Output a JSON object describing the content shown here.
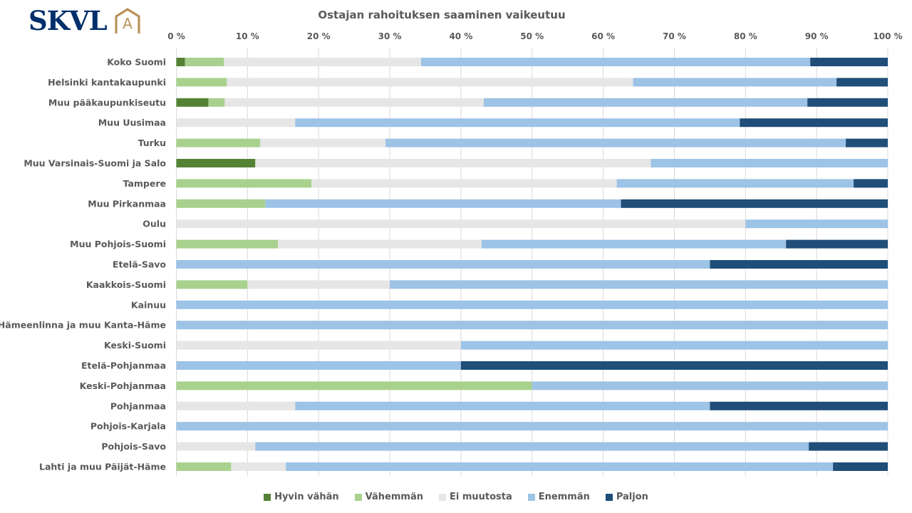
{
  "logo": {
    "text": "SKVL",
    "mark": "A"
  },
  "colors": {
    "hyvin_vahan": "#548235",
    "vahemman": "#A9D18E",
    "ei_muutosta": "#E7E6E6",
    "enemman": "#9DC3E6",
    "paljon": "#1F4E79",
    "gridline": "#D9D9D9",
    "logo_navy": "#002F6C",
    "logo_gold": "#B8925A"
  },
  "chart_data": {
    "type": "bar",
    "orientation": "horizontal",
    "stacked": "100%",
    "title": "Ostajan rahoituksen saaminen vaikeutuu",
    "xlabel": "",
    "ylabel": "",
    "xlim": [
      0,
      100
    ],
    "x_ticks": [
      "0 %",
      "10 %",
      "20 %",
      "30 %",
      "40 %",
      "50 %",
      "60 %",
      "70 %",
      "80 %",
      "90 %",
      "100 %"
    ],
    "grid": true,
    "legend_position": "bottom",
    "categories": [
      "Koko Suomi",
      "Helsinki kantakaupunki",
      "Muu pääkaupunkiseutu",
      "Muu Uusimaa",
      "Turku",
      "Muu Varsinais-Suomi ja Salo",
      "Tampere",
      "Muu Pirkanmaa",
      "Oulu",
      "Muu Pohjois-Suomi",
      "Etelä-Savo",
      "Kaakkois-Suomi",
      "Kainuu",
      "Hämeenlinna ja muu Kanta-Häme",
      "Keski-Suomi",
      "Etelä-Pohjanmaa",
      "Keski-Pohjanmaa",
      "Pohjanmaa",
      "Pohjois-Karjala",
      "Pohjois-Savo",
      "Lahti ja muu Päijät-Häme"
    ],
    "series": [
      {
        "name": "Hyvin vähän",
        "color_key": "hyvin_vahan",
        "values": [
          1.2,
          0,
          4.5,
          0,
          0,
          11.1,
          0,
          0,
          0,
          0,
          0,
          0,
          0,
          0,
          0,
          0,
          0,
          0,
          0,
          0,
          0
        ]
      },
      {
        "name": "Vähemmän",
        "color_key": "vahemman",
        "values": [
          5.5,
          7.1,
          2.3,
          0,
          11.8,
          0,
          19.0,
          12.5,
          0,
          14.3,
          0,
          10.0,
          0,
          0,
          0,
          0,
          50.0,
          0,
          0,
          0,
          7.7
        ]
      },
      {
        "name": "Ei muutosta",
        "color_key": "ei_muutosta",
        "values": [
          27.7,
          57.1,
          36.4,
          16.7,
          17.6,
          55.6,
          42.9,
          0,
          80.0,
          28.6,
          0,
          20.0,
          0,
          0,
          40.0,
          0,
          0,
          16.7,
          0,
          11.1,
          7.7
        ]
      },
      {
        "name": "Enemmän",
        "color_key": "enemman",
        "values": [
          54.7,
          28.6,
          45.5,
          62.5,
          64.7,
          33.3,
          33.3,
          50.0,
          20.0,
          42.8,
          75.0,
          70.0,
          100,
          100,
          60.0,
          40.0,
          50.0,
          58.3,
          100,
          77.8,
          76.9
        ]
      },
      {
        "name": "Paljon",
        "color_key": "paljon",
        "values": [
          10.9,
          7.2,
          11.3,
          20.8,
          5.9,
          0,
          4.8,
          37.5,
          0,
          14.3,
          25.0,
          0,
          0,
          0,
          0,
          60.0,
          0,
          25.0,
          0,
          11.1,
          7.7
        ]
      }
    ]
  }
}
